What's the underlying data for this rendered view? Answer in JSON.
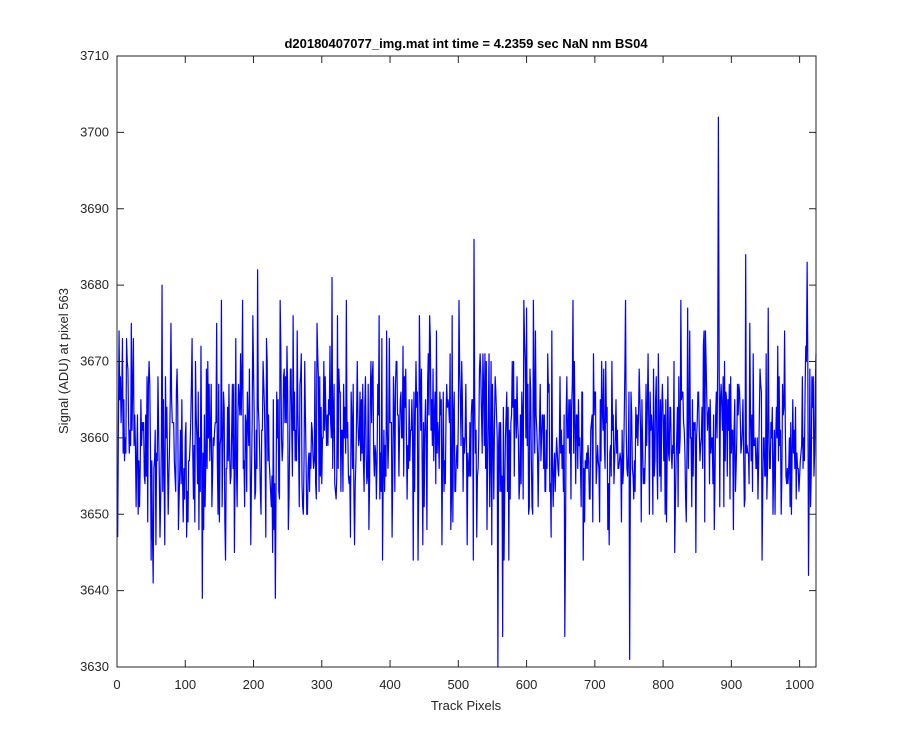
{
  "chart_data": {
    "type": "line",
    "title": "d20180407077_img.mat int time = 4.2359 sec  NaN nm BS04",
    "xlabel": "Track Pixels",
    "ylabel": "Signal (ADU) at pixel 563",
    "xlim": [
      0,
      1024
    ],
    "ylim": [
      3630,
      3710
    ],
    "xticks": [
      0,
      100,
      200,
      300,
      400,
      500,
      600,
      700,
      800,
      900,
      1000
    ],
    "yticks": [
      3630,
      3640,
      3650,
      3660,
      3670,
      3680,
      3690,
      3700,
      3710
    ],
    "grid": false,
    "legend": "none",
    "series_color": "#0000ff",
    "axis_color": "#262626",
    "series": [
      {
        "x_start": 1,
        "x_step": 1,
        "noise_model": {
          "mean": 3660.5,
          "std": 7.0,
          "min": 3630,
          "max": 3702,
          "points": 1024
        },
        "notable_points": [
          {
            "x": 1,
            "y": 3647
          },
          {
            "x": 3,
            "y": 3674
          },
          {
            "x": 53,
            "y": 3641
          },
          {
            "x": 66,
            "y": 3680
          },
          {
            "x": 125,
            "y": 3639
          },
          {
            "x": 206,
            "y": 3682
          },
          {
            "x": 232,
            "y": 3639
          },
          {
            "x": 315,
            "y": 3681
          },
          {
            "x": 523,
            "y": 3686
          },
          {
            "x": 558,
            "y": 3630
          },
          {
            "x": 565,
            "y": 3634
          },
          {
            "x": 656,
            "y": 3634
          },
          {
            "x": 751,
            "y": 3631
          },
          {
            "x": 881,
            "y": 3702
          },
          {
            "x": 921,
            "y": 3684
          },
          {
            "x": 1011,
            "y": 3683
          },
          {
            "x": 1013,
            "y": 3642
          },
          {
            "x": 1024,
            "y": 3671
          }
        ]
      }
    ]
  }
}
